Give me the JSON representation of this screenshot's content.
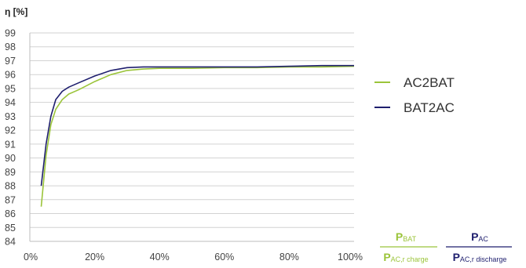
{
  "chart_data": {
    "type": "line",
    "title": "",
    "ylabel": "η [%]",
    "xlabel": "",
    "xlim": [
      0,
      100
    ],
    "ylim": [
      84,
      99
    ],
    "x_ticks": [
      0,
      20,
      40,
      60,
      80,
      100
    ],
    "x_tick_labels": [
      "0%",
      "20%",
      "40%",
      "60%",
      "80%",
      "100%"
    ],
    "y_ticks": [
      84,
      85,
      86,
      87,
      88,
      89,
      90,
      91,
      92,
      93,
      94,
      95,
      96,
      97,
      98,
      99
    ],
    "grid": true,
    "legend_position": "right",
    "series": [
      {
        "name": "AC2BAT",
        "color": "#9bc43a",
        "x": [
          3.5,
          5,
          6.5,
          8,
          10,
          12,
          15,
          20,
          25,
          30,
          35,
          40,
          50,
          60,
          70,
          80,
          90,
          100
        ],
        "y": [
          86.5,
          90.2,
          92.4,
          93.5,
          94.2,
          94.6,
          94.9,
          95.5,
          96.0,
          96.3,
          96.4,
          96.45,
          96.45,
          96.5,
          96.5,
          96.55,
          96.55,
          96.6
        ]
      },
      {
        "name": "BAT2AC",
        "color": "#1f1f6e",
        "x": [
          3.5,
          5,
          6.5,
          8,
          10,
          12,
          15,
          20,
          25,
          30,
          35,
          40,
          50,
          60,
          70,
          80,
          90,
          100
        ],
        "y": [
          88.0,
          91.0,
          93.0,
          94.2,
          94.8,
          95.1,
          95.4,
          95.9,
          96.3,
          96.5,
          96.55,
          96.55,
          96.55,
          96.55,
          96.55,
          96.6,
          96.65,
          96.65
        ]
      }
    ],
    "formula_labels": {
      "ac2bat": {
        "num_main": "P",
        "num_sub": "BAT",
        "den_main": "P",
        "den_sub": "AC,r charge",
        "color": "#9bc43a"
      },
      "bat2ac": {
        "num_main": "P",
        "num_sub": "AC",
        "den_main": "P",
        "den_sub": "AC,r discharge",
        "color": "#1f1f6e"
      }
    }
  }
}
